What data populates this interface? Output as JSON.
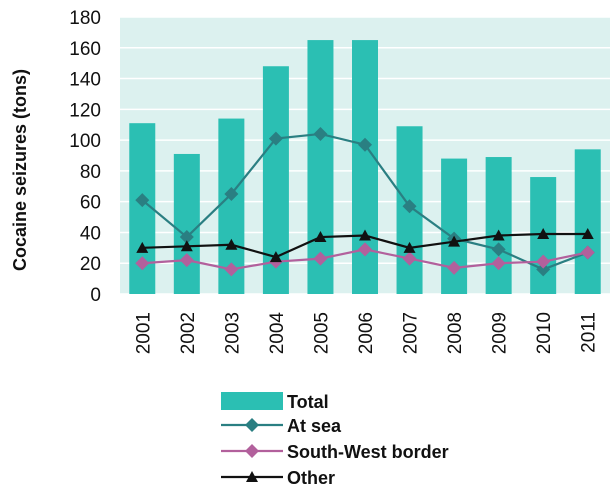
{
  "chart_data": {
    "type": "bar",
    "ylabel": "Cocaine seizures (tons)",
    "ylim": [
      0,
      180
    ],
    "yticks": [
      0,
      20,
      40,
      60,
      80,
      100,
      120,
      140,
      160,
      180
    ],
    "grid": true,
    "legend_position": "bottom",
    "categories": [
      "2001",
      "2002",
      "2003",
      "2004",
      "2005",
      "2006",
      "2007",
      "2008",
      "2009",
      "2010",
      "2011"
    ],
    "series": [
      {
        "name": "Total",
        "kind": "bar",
        "color": "#2bbfb3",
        "values": [
          111,
          91,
          114,
          148,
          165,
          165,
          109,
          88,
          89,
          76,
          94
        ]
      },
      {
        "name": "At sea",
        "kind": "line",
        "marker": "diamond",
        "color": "#2a7f82",
        "values": [
          61,
          37,
          65,
          101,
          104,
          97,
          57,
          36,
          29,
          16,
          27
        ]
      },
      {
        "name": "South-West border",
        "kind": "line",
        "marker": "diamond",
        "color": "#b2609c",
        "values": [
          20,
          22,
          16,
          21,
          23,
          29,
          23,
          17,
          20,
          21,
          27
        ]
      },
      {
        "name": "Other",
        "kind": "line",
        "marker": "triangle",
        "color": "#111111",
        "values": [
          30,
          31,
          32,
          24,
          37,
          38,
          30,
          34,
          38,
          39,
          39
        ]
      }
    ]
  }
}
